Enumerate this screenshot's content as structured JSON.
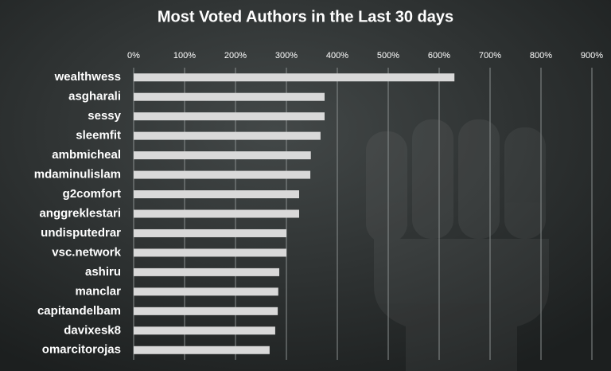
{
  "chart_data": {
    "type": "bar",
    "orientation": "horizontal",
    "title": "Most Voted Authors in the Last 30 days",
    "categories": [
      "wealthwess",
      "asgharali",
      "sessy",
      "sleemfit",
      "ambmicheal",
      "mdaminulislam",
      "g2comfort",
      "anggreklestari",
      "undisputedrar",
      "vsc.network",
      "ashiru",
      "manclar",
      "capitandelbam",
      "davixesk8",
      "omarcitorojas"
    ],
    "values": [
      630,
      375,
      375,
      367,
      348,
      347,
      325,
      325,
      300,
      300,
      286,
      284,
      283,
      278,
      267
    ],
    "color": "#d9d9d9",
    "xlim": [
      0,
      900
    ],
    "xticks": [
      {
        "value": 0,
        "label": "0%"
      },
      {
        "value": 100,
        "label": "100%"
      },
      {
        "value": 200,
        "label": "200%"
      },
      {
        "value": 300,
        "label": "300%"
      },
      {
        "value": 400,
        "label": "400%"
      },
      {
        "value": 500,
        "label": "500%"
      },
      {
        "value": 600,
        "label": "600%"
      },
      {
        "value": 700,
        "label": "700%"
      },
      {
        "value": 800,
        "label": "800%"
      },
      {
        "value": 900,
        "label": "900%"
      }
    ],
    "grid": true
  }
}
